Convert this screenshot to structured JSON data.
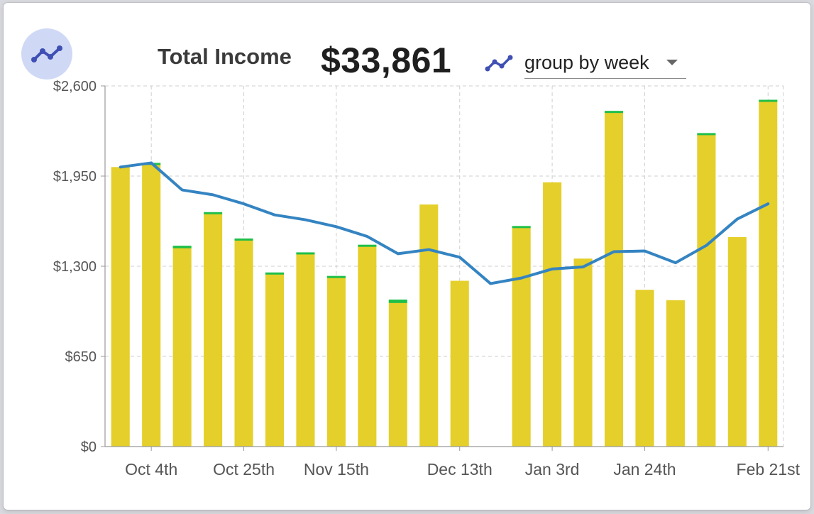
{
  "header": {
    "title": "Total Income",
    "total": "$33,861",
    "chart_icon": "line-chart-icon",
    "group_icon": "trend-line-icon",
    "group_by_value": "group by week"
  },
  "colors": {
    "bar": "#e5cf2a",
    "bar_cap": "#1fbf4a",
    "line": "#3484c2",
    "icon": "#3f4fb3",
    "icon_bg": "#cfd9f6",
    "grid": "#cfcfcf"
  },
  "chart_data": {
    "type": "bar",
    "title": "",
    "xlabel": "",
    "ylabel": "",
    "ylim": [
      0,
      2600
    ],
    "yticks": [
      "$0",
      "$650",
      "$1,300",
      "$1,950",
      "$2,600"
    ],
    "ytick_values": [
      0,
      650,
      1300,
      1950,
      2600
    ],
    "x_tick_labels": [
      {
        "index": 1,
        "label": "Oct 4th"
      },
      {
        "index": 4,
        "label": "Oct 25th"
      },
      {
        "index": 7,
        "label": "Nov 15th"
      },
      {
        "index": 11,
        "label": "Dec 13th"
      },
      {
        "index": 14,
        "label": "Jan 3rd"
      },
      {
        "index": 17,
        "label": "Jan 24th"
      },
      {
        "index": 21,
        "label": "Feb 21st"
      }
    ],
    "grid": true,
    "bar_values": [
      2015,
      2040,
      1440,
      1685,
      1495,
      1250,
      1395,
      1225,
      1450,
      1045,
      1745,
      1195,
      0,
      1585,
      1905,
      1355,
      2415,
      1130,
      1055,
      2255,
      1510,
      2495
    ],
    "bar_cap_values": [
      0,
      15,
      18,
      12,
      15,
      8,
      6,
      8,
      8,
      25,
      0,
      0,
      0,
      10,
      0,
      0,
      10,
      0,
      0,
      8,
      0,
      5
    ],
    "line_values": [
      2015,
      2045,
      1850,
      1815,
      1750,
      1670,
      1635,
      1585,
      1515,
      1390,
      1420,
      1365,
      1175,
      1215,
      1280,
      1295,
      1405,
      1410,
      1325,
      1450,
      1640,
      1750
    ]
  }
}
